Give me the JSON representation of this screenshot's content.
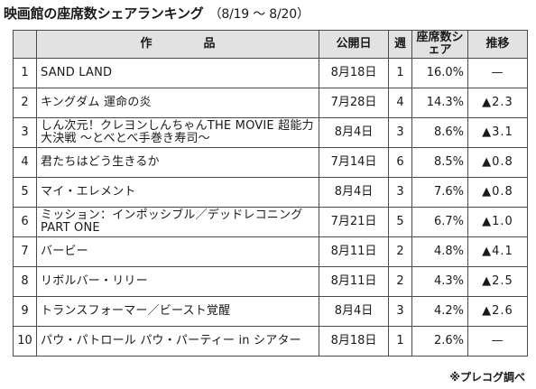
{
  "header": {
    "title": "映画館の座席数シェアランキング",
    "period": "（8/19 〜 8/20）"
  },
  "table": {
    "columns": {
      "rank": "",
      "title": "作　品",
      "release": "公開日",
      "weeks": "週",
      "share": "座席数シェア",
      "trend": "推移"
    },
    "rows": [
      {
        "rank": "1",
        "title": "SAND LAND",
        "release": "8月18日",
        "weeks": "1",
        "share": "16.0%",
        "trend": "—"
      },
      {
        "rank": "2",
        "title": "キングダム 運命の炎",
        "release": "7月28日",
        "weeks": "4",
        "share": "14.3%",
        "trend": "▲2.3"
      },
      {
        "rank": "3",
        "title": "しん次元！クレヨンしんちゃんTHE MOVIE 超能力大決戦 〜とべとべ手巻き寿司〜",
        "release": "8月4日",
        "weeks": "3",
        "share": "8.6%",
        "trend": "▲3.1"
      },
      {
        "rank": "4",
        "title": "君たちはどう生きるか",
        "release": "7月14日",
        "weeks": "6",
        "share": "8.5%",
        "trend": "▲0.8"
      },
      {
        "rank": "5",
        "title": "マイ・エレメント",
        "release": "8月4日",
        "weeks": "3",
        "share": "7.6%",
        "trend": "▲0.8"
      },
      {
        "rank": "6",
        "title": "ミッション：インポッシブル／デッドレコニング PART ONE",
        "release": "7月21日",
        "weeks": "5",
        "share": "6.7%",
        "trend": "▲1.0"
      },
      {
        "rank": "7",
        "title": "バービー",
        "release": "8月11日",
        "weeks": "2",
        "share": "4.8%",
        "trend": "▲4.1"
      },
      {
        "rank": "8",
        "title": "リボルバー・リリー",
        "release": "8月11日",
        "weeks": "2",
        "share": "4.3%",
        "trend": "▲2.5"
      },
      {
        "rank": "9",
        "title": "トランスフォーマー／ビースト覚醒",
        "release": "8月4日",
        "weeks": "3",
        "share": "4.2%",
        "trend": "▲2.6"
      },
      {
        "rank": "10",
        "title": "パウ・パトロール パウ・パーティー in シアター",
        "release": "8月18日",
        "weeks": "1",
        "share": "2.6%",
        "trend": "—"
      }
    ]
  },
  "footnote": "※プレコグ調べ"
}
